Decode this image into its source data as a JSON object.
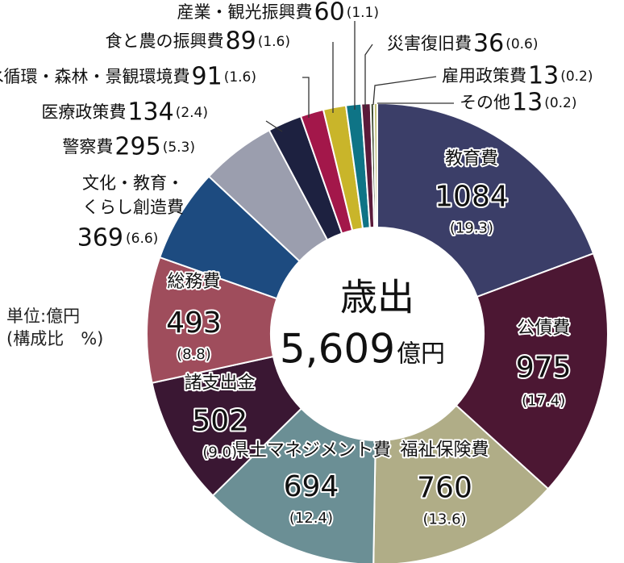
{
  "chart_data": {
    "type": "donut",
    "center": {
      "line1": "歳出",
      "amount": "5,609",
      "unit": "億円"
    },
    "unit_note": {
      "line1": "単位:億円",
      "line2": "(構成比　%)"
    },
    "segments": [
      {
        "name": "教育費",
        "value": 1084,
        "pct": "19.3",
        "color": "#3b3e68"
      },
      {
        "name": "公債費",
        "value": 975,
        "pct": "17.4",
        "color": "#4c1733"
      },
      {
        "name": "福祉保険費",
        "value": 760,
        "pct": "13.6",
        "color": "#b0ad87"
      },
      {
        "name": "県土マネジメント費",
        "value": 694,
        "pct": "12.4",
        "color": "#6b8f95"
      },
      {
        "name": "諸支出金",
        "value": 502,
        "pct": "9.0",
        "color": "#3a1733"
      },
      {
        "name": "総務費",
        "value": 493,
        "pct": "8.8",
        "color": "#9f4d5c"
      },
      {
        "name": "文化・教育・くらし創造費",
        "value": 369,
        "pct": "6.6",
        "color": "#1d4b80"
      },
      {
        "name": "警察費",
        "value": 295,
        "pct": "5.3",
        "color": "#9b9eae"
      },
      {
        "name": "医療政策費",
        "value": 134,
        "pct": "2.4",
        "color": "#1d2140"
      },
      {
        "name": "水循環・森林・景観環境費",
        "value": 91,
        "pct": "1.6",
        "color": "#a3174a"
      },
      {
        "name": "食と農の振興費",
        "value": 89,
        "pct": "1.6",
        "color": "#c9b52a"
      },
      {
        "name": "産業・観光振興費",
        "value": 60,
        "pct": "1.1",
        "color": "#0e7486"
      },
      {
        "name": "災害復旧費",
        "value": 36,
        "pct": "0.6",
        "color": "#5b1a3a"
      },
      {
        "name": "雇用政策費",
        "value": 13,
        "pct": "0.2",
        "color": "#3d4b2e"
      },
      {
        "name": "その他",
        "value": 13,
        "pct": "0.2",
        "color": "#c5c27d"
      }
    ]
  }
}
